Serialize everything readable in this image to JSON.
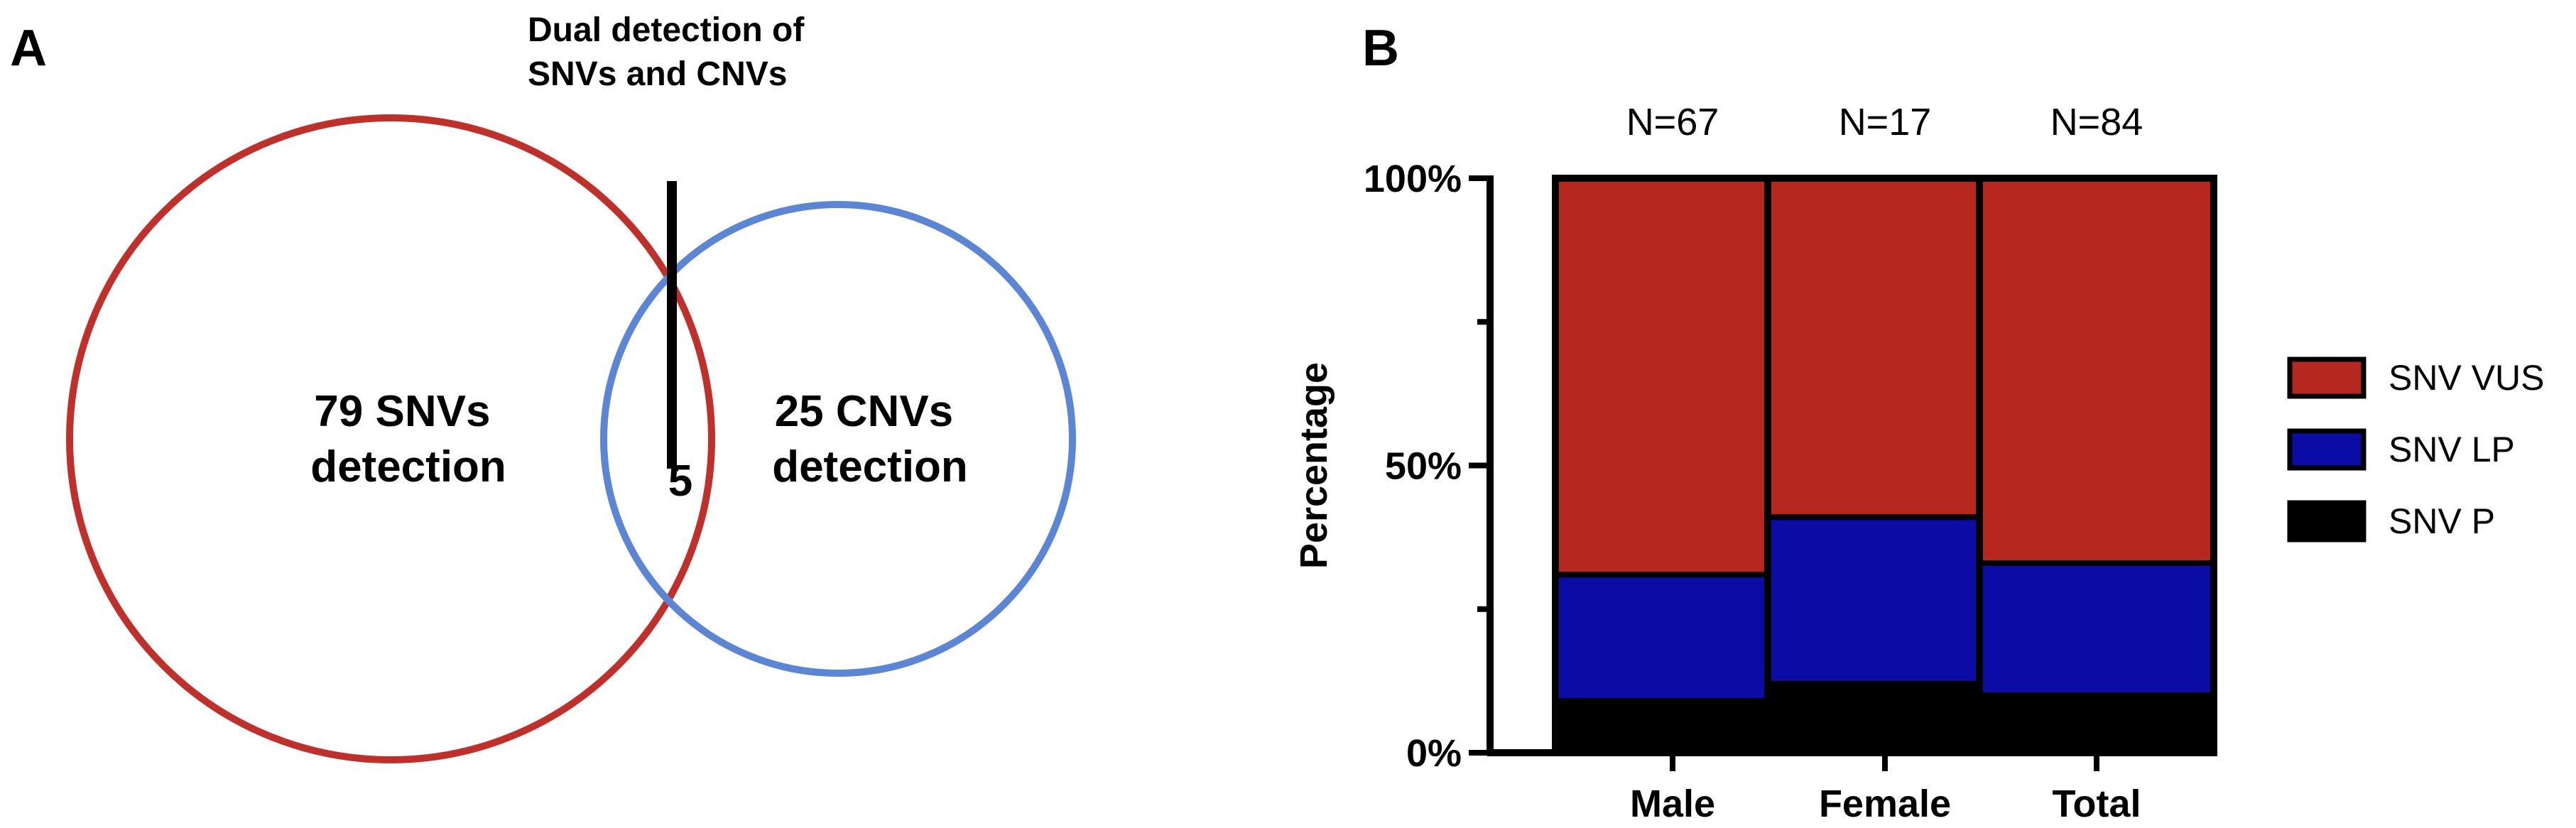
{
  "panel_a": {
    "label": "A",
    "annotation": [
      "Dual detection of",
      "SNVs and CNVs"
    ],
    "left_set": {
      "lines": [
        "79 SNVs",
        "detection"
      ],
      "color": "#c0302b"
    },
    "right_set": {
      "lines": [
        "25 CNVs",
        "detection"
      ],
      "color": "#5b86d6"
    },
    "overlap": "5"
  },
  "panel_b": {
    "label": "B"
  },
  "chart_data": {
    "type": "bar",
    "stacked": true,
    "categories": [
      "Male",
      "Female",
      "Total"
    ],
    "n_labels": [
      "N=67",
      "N=17",
      "N=84"
    ],
    "series": [
      {
        "name": "SNV P",
        "values": [
          9,
          12,
          10
        ],
        "color": "#000000"
      },
      {
        "name": "SNV LP",
        "values": [
          22,
          29,
          23
        ],
        "color": "#0b0ba6"
      },
      {
        "name": "SNV VUS",
        "values": [
          69,
          59,
          67
        ],
        "color": "#b5271f"
      }
    ],
    "ylabel": "Percentage",
    "xlabel": "",
    "ylim": [
      0,
      100
    ],
    "yticks": [
      0,
      50,
      100
    ],
    "ytick_labels": [
      "0%",
      "50%",
      "100%"
    ],
    "legend_order": [
      "SNV VUS",
      "SNV LP",
      "SNV P"
    ],
    "legend_position": "right",
    "grid": false
  }
}
